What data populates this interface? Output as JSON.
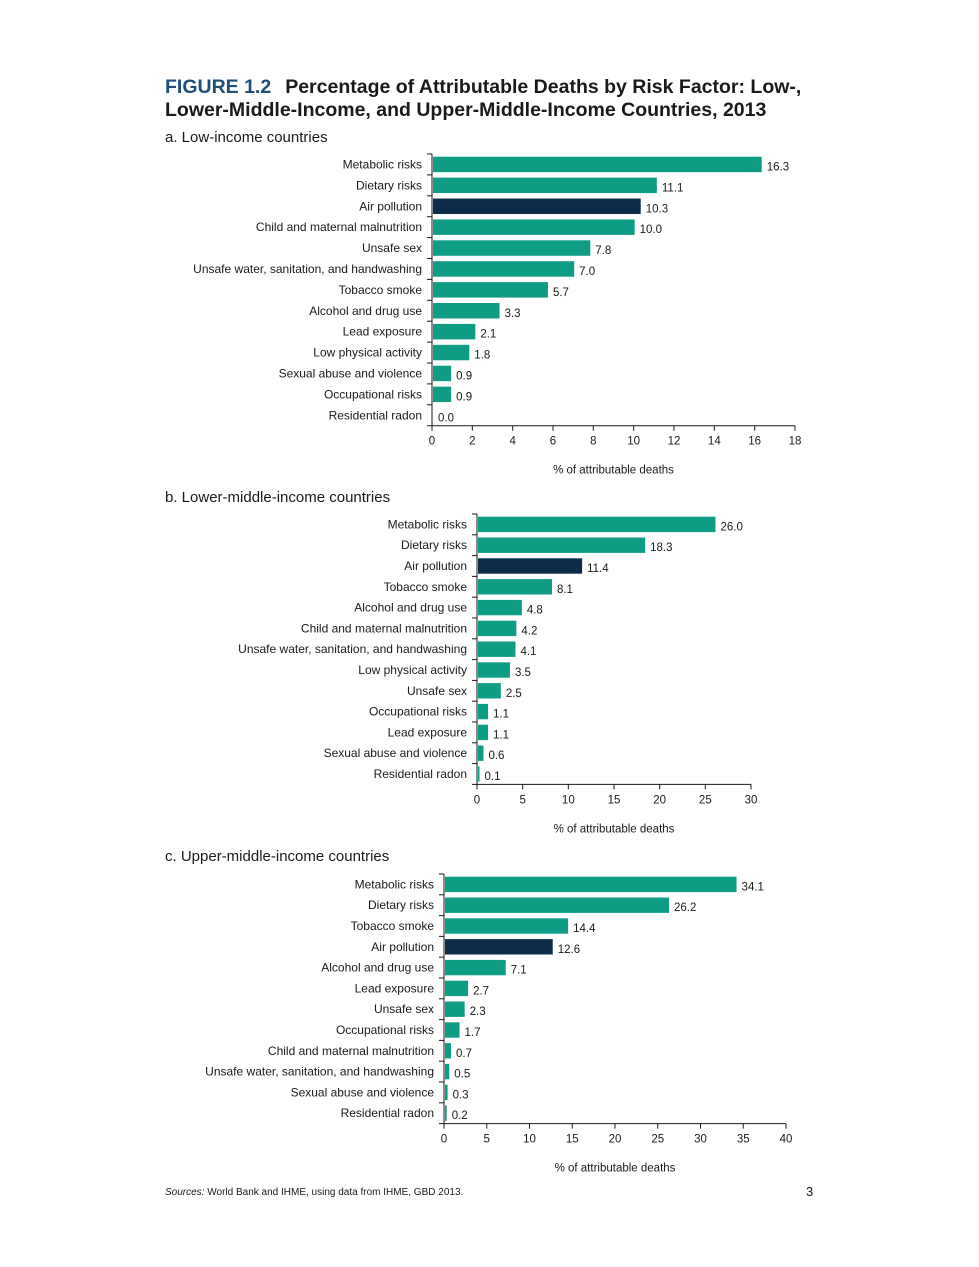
{
  "figure": {
    "number": "FIGURE 1.2",
    "title": "Percentage of Attributable Deaths by Risk Factor: Low-, Lower-Middle-Income, and Upper-Middle-Income Countries, 2013"
  },
  "colors": {
    "bar": "#0e9c85",
    "highlight": "#0c2d4a",
    "axis": "#1a1a1a"
  },
  "chart_data": [
    {
      "type": "bar",
      "orientation": "horizontal",
      "title": "a. Low-income countries",
      "xlabel": "% of attributable deaths",
      "xlim": [
        0,
        18
      ],
      "xticks": [
        0,
        2,
        4,
        6,
        8,
        10,
        12,
        14,
        16,
        18
      ],
      "highlight": "Air pollution",
      "categories": [
        "Metabolic risks",
        "Dietary risks",
        "Air pollution",
        "Child and maternal malnutrition",
        "Unsafe sex",
        "Unsafe water, sanitation, and handwashing",
        "Tobacco smoke",
        "Alcohol and drug use",
        "Lead exposure",
        "Low physical activity",
        "Sexual abuse and violence",
        "Occupational risks",
        "Residential radon"
      ],
      "values": [
        16.3,
        11.1,
        10.3,
        10.0,
        7.8,
        7.0,
        5.7,
        3.3,
        2.1,
        1.8,
        0.9,
        0.9,
        0.0
      ],
      "value_labels": [
        "16.3",
        "11.1",
        "10.3",
        "10.0",
        "7.8",
        "7.0",
        "5.7",
        "3.3",
        "2.1",
        "1.8",
        "0.9",
        "0.9",
        "0.0"
      ]
    },
    {
      "type": "bar",
      "orientation": "horizontal",
      "title": "b. Lower-middle-income countries",
      "xlabel": "% of attributable deaths",
      "xlim": [
        0,
        30
      ],
      "xticks": [
        0,
        5,
        10,
        15,
        20,
        25,
        30
      ],
      "highlight": "Air pollution",
      "categories": [
        "Metabolic risks",
        "Dietary risks",
        "Air pollution",
        "Tobacco smoke",
        "Alcohol and drug use",
        "Child and maternal malnutrition",
        "Unsafe water, sanitation, and handwashing",
        "Low physical activity",
        "Unsafe sex",
        "Occupational risks",
        "Lead exposure",
        "Sexual abuse and violence",
        "Residential radon"
      ],
      "values": [
        26.0,
        18.3,
        11.4,
        8.1,
        4.8,
        4.2,
        4.1,
        3.5,
        2.5,
        1.1,
        1.1,
        0.6,
        0.1
      ],
      "value_labels": [
        "26.0",
        "18.3",
        "11.4",
        "8.1",
        "4.8",
        "4.2",
        "4.1",
        "3.5",
        "2.5",
        "1.1",
        "1.1",
        "0.6",
        "0.1"
      ]
    },
    {
      "type": "bar",
      "orientation": "horizontal",
      "title": "c. Upper-middle-income countries",
      "xlabel": "% of attributable deaths",
      "xlim": [
        0,
        40
      ],
      "xticks": [
        0,
        5,
        10,
        15,
        20,
        25,
        30,
        35,
        40
      ],
      "highlight": "Air pollution",
      "categories": [
        "Metabolic risks",
        "Dietary risks",
        "Tobacco smoke",
        "Air pollution",
        "Alcohol and drug use",
        "Lead exposure",
        "Unsafe sex",
        "Occupational risks",
        "Child and maternal malnutrition",
        "Unsafe water, sanitation, and handwashing",
        "Sexual abuse and violence",
        "Residential radon"
      ],
      "values": [
        34.1,
        26.2,
        14.4,
        12.6,
        7.1,
        2.7,
        2.3,
        1.7,
        0.7,
        0.5,
        0.3,
        0.2
      ],
      "value_labels": [
        "34.1",
        "26.2",
        "14.4",
        "12.6",
        "7.1",
        "2.7",
        "2.3",
        "1.7",
        "0.7",
        "0.5",
        "0.3",
        "0.2"
      ]
    }
  ],
  "footer": {
    "sources_label": "Sources:",
    "sources_text": " World Bank and IHME, using data from IHME, GBD 2013.",
    "page_number": "3"
  }
}
